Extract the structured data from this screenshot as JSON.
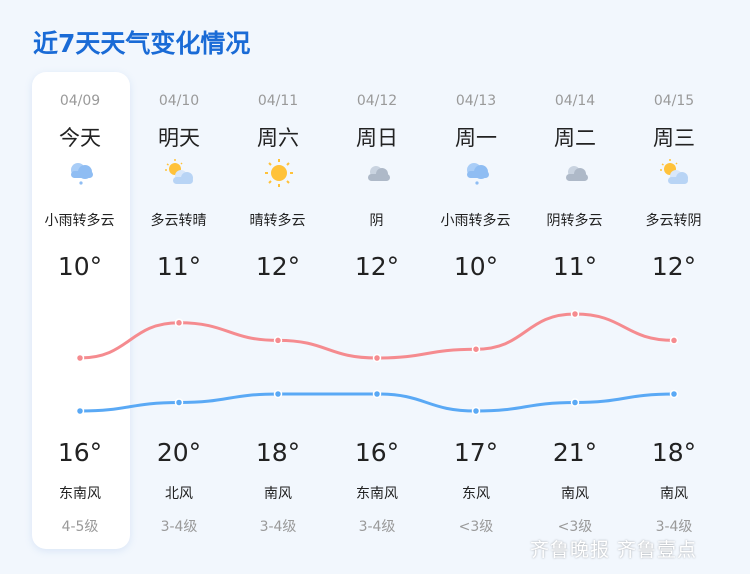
{
  "title": "近7天天气变化情况",
  "days": [
    {
      "date": "04/09",
      "day": "今天",
      "icon": "light-rain-cloud-icon",
      "desc": "小雨转多云",
      "top_temp": "10°",
      "bottom_temp": "16°",
      "wind": "东南风",
      "level": "4-5级"
    },
    {
      "date": "04/10",
      "day": "明天",
      "icon": "partly-cloudy-icon",
      "desc": "多云转晴",
      "top_temp": "11°",
      "bottom_temp": "20°",
      "wind": "北风",
      "level": "3-4级"
    },
    {
      "date": "04/11",
      "day": "周六",
      "icon": "sun-icon",
      "desc": "晴转多云",
      "top_temp": "12°",
      "bottom_temp": "18°",
      "wind": "南风",
      "level": "3-4级"
    },
    {
      "date": "04/12",
      "day": "周日",
      "icon": "overcast-cloud-icon",
      "desc": "阴",
      "top_temp": "12°",
      "bottom_temp": "16°",
      "wind": "东南风",
      "level": "3-4级"
    },
    {
      "date": "04/13",
      "day": "周一",
      "icon": "light-rain-cloud-icon",
      "desc": "小雨转多云",
      "top_temp": "10°",
      "bottom_temp": "17°",
      "wind": "东风",
      "level": "<3级"
    },
    {
      "date": "04/14",
      "day": "周二",
      "icon": "overcast-cloud-icon",
      "desc": "阴转多云",
      "top_temp": "11°",
      "bottom_temp": "21°",
      "wind": "南风",
      "level": "<3级"
    },
    {
      "date": "04/15",
      "day": "周三",
      "icon": "partly-cloudy-icon",
      "desc": "多云转阴",
      "top_temp": "12°",
      "bottom_temp": "18°",
      "wind": "南风",
      "level": "3-4级"
    }
  ],
  "colors": {
    "title": "#1a6bd6",
    "red_curve": "#f58b8f",
    "blue_curve": "#5aa9f5"
  },
  "watermark": "齐鲁晚报 齐鲁壹点"
}
